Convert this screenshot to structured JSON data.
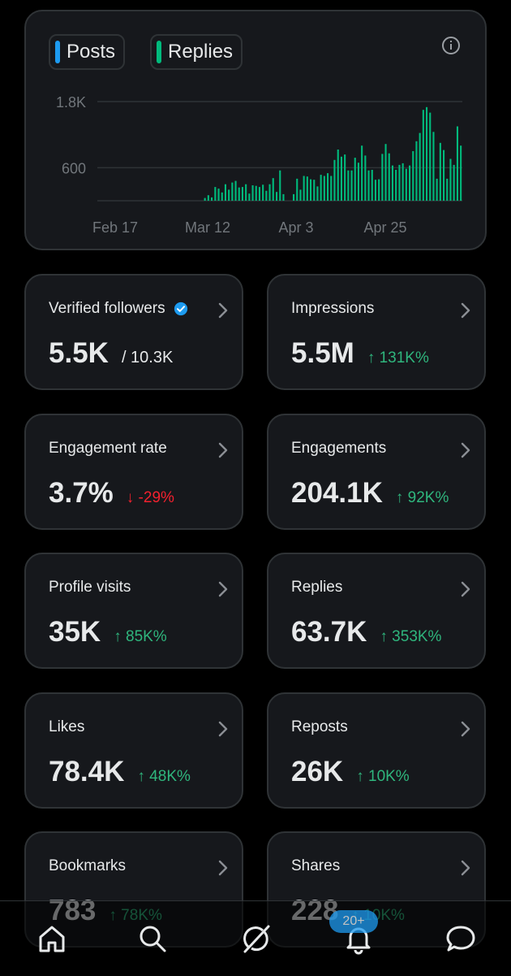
{
  "legend": {
    "posts_label": "Posts",
    "replies_label": "Replies",
    "posts_color": "#1d9bf0",
    "replies_color": "#00ba7c"
  },
  "chart_data": {
    "type": "bar",
    "series": [
      {
        "name": "Replies",
        "values": [
          0,
          0,
          0,
          0,
          0,
          0,
          0,
          0,
          0,
          0,
          0,
          0,
          0,
          0,
          0,
          0,
          0,
          0,
          0,
          0,
          0,
          0,
          0,
          0,
          0,
          0,
          0,
          0,
          0,
          0,
          0,
          50,
          100,
          60,
          250,
          220,
          150,
          300,
          200,
          330,
          360,
          240,
          250,
          300,
          130,
          280,
          270,
          250,
          290,
          180,
          300,
          410,
          160,
          550,
          120,
          0,
          0,
          120,
          400,
          200,
          450,
          440,
          390,
          380,
          260,
          470,
          450,
          500,
          450,
          740,
          930,
          800,
          840,
          550,
          550,
          780,
          690,
          1000,
          820,
          550,
          560,
          380,
          390,
          850,
          1030,
          860,
          640,
          560,
          650,
          680,
          580,
          640,
          900,
          1080,
          1230,
          1650,
          1700,
          1600,
          1250,
          400,
          1050,
          920,
          400,
          760,
          650,
          1350,
          1000
        ],
        "color": "#00ba7c"
      }
    ],
    "x_tick_labels": [
      "Feb 17",
      "Mar 12",
      "Apr 3",
      "Apr 25"
    ],
    "y_tick_labels": [
      "1.8K",
      "600"
    ],
    "y_ticks": [
      1800,
      600
    ],
    "ylim": [
      0,
      1800
    ],
    "grid": true
  },
  "stats": [
    {
      "title": "Verified followers",
      "value": "5.5K",
      "sub": "/ 10.3K",
      "delta": "",
      "direction": "none"
    },
    {
      "title": "Impressions",
      "value": "5.5M",
      "sub": "",
      "delta": "↑ 131K%",
      "direction": "up"
    },
    {
      "title": "Engagement rate",
      "value": "3.7%",
      "sub": "",
      "delta": "↓ -29%",
      "direction": "down"
    },
    {
      "title": "Engagements",
      "value": "204.1K",
      "sub": "",
      "delta": "↑ 92K%",
      "direction": "up"
    },
    {
      "title": "Profile visits",
      "value": "35K",
      "sub": "",
      "delta": "↑ 85K%",
      "direction": "up"
    },
    {
      "title": "Replies",
      "value": "63.7K",
      "sub": "",
      "delta": "↑ 353K%",
      "direction": "up"
    },
    {
      "title": "Likes",
      "value": "78.4K",
      "sub": "",
      "delta": "↑ 48K%",
      "direction": "up"
    },
    {
      "title": "Reposts",
      "value": "26K",
      "sub": "",
      "delta": "↑ 10K%",
      "direction": "up"
    },
    {
      "title": "Bookmarks",
      "value": "783",
      "sub": "",
      "delta": "↑ 78K%",
      "direction": "up"
    },
    {
      "title": "Shares",
      "value": "228",
      "sub": "",
      "delta": "↑ 10K%",
      "direction": "up"
    }
  ],
  "nav": {
    "notifications_badge": "20+",
    "icons": [
      "home-icon",
      "search-icon",
      "grok-icon",
      "notifications-icon",
      "messages-icon"
    ]
  }
}
